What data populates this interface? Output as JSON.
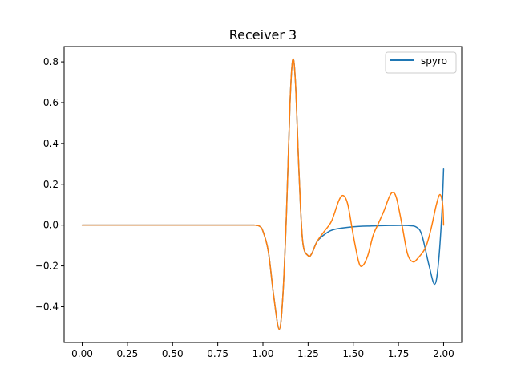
{
  "chart_data": {
    "type": "line",
    "title": "Receiver 3",
    "xlabel": "",
    "ylabel": "",
    "xlim": [
      -0.1,
      2.1
    ],
    "ylim": [
      -0.575,
      0.875
    ],
    "x_ticks": [
      0.0,
      0.25,
      0.5,
      0.75,
      1.0,
      1.25,
      1.5,
      1.75,
      2.0
    ],
    "x_tick_labels": [
      "0.00",
      "0.25",
      "0.50",
      "0.75",
      "1.00",
      "1.25",
      "1.50",
      "1.75",
      "2.00"
    ],
    "y_ticks": [
      -0.4,
      -0.2,
      0.0,
      0.2,
      0.4,
      0.6,
      0.8
    ],
    "y_tick_labels": [
      "−0.4",
      "−0.2",
      "0.0",
      "0.2",
      "0.4",
      "0.6",
      "0.8"
    ],
    "grid": false,
    "legend": {
      "position": "top-right",
      "entries": [
        "spyro"
      ]
    },
    "series": [
      {
        "name": "spyro",
        "color": "#1f77b4",
        "points": [
          [
            0.0,
            0.0
          ],
          [
            0.5,
            0.0
          ],
          [
            0.9,
            0.0
          ],
          [
            0.95,
            0.0
          ],
          [
            0.98,
            -0.005
          ],
          [
            1.0,
            -0.03
          ],
          [
            1.03,
            -0.13
          ],
          [
            1.06,
            -0.35
          ],
          [
            1.09,
            -0.51
          ],
          [
            1.11,
            -0.35
          ],
          [
            1.13,
            0.05
          ],
          [
            1.15,
            0.6
          ],
          [
            1.165,
            0.81
          ],
          [
            1.18,
            0.7
          ],
          [
            1.2,
            0.25
          ],
          [
            1.22,
            -0.08
          ],
          [
            1.25,
            -0.15
          ],
          [
            1.27,
            -0.14
          ],
          [
            1.3,
            -0.08
          ],
          [
            1.35,
            -0.04
          ],
          [
            1.4,
            -0.02
          ],
          [
            1.5,
            -0.008
          ],
          [
            1.6,
            -0.004
          ],
          [
            1.7,
            -0.002
          ],
          [
            1.8,
            -0.002
          ],
          [
            1.85,
            -0.01
          ],
          [
            1.88,
            -0.05
          ],
          [
            1.92,
            -0.2
          ],
          [
            1.95,
            -0.29
          ],
          [
            1.97,
            -0.2
          ],
          [
            1.99,
            0.05
          ],
          [
            2.0,
            0.275
          ]
        ]
      },
      {
        "name": "",
        "color": "#ff7f0e",
        "points": [
          [
            0.0,
            0.0
          ],
          [
            0.5,
            0.0
          ],
          [
            0.9,
            0.0
          ],
          [
            0.95,
            0.0
          ],
          [
            0.98,
            -0.005
          ],
          [
            1.0,
            -0.03
          ],
          [
            1.03,
            -0.13
          ],
          [
            1.06,
            -0.35
          ],
          [
            1.09,
            -0.51
          ],
          [
            1.11,
            -0.35
          ],
          [
            1.13,
            0.05
          ],
          [
            1.15,
            0.6
          ],
          [
            1.165,
            0.81
          ],
          [
            1.18,
            0.7
          ],
          [
            1.2,
            0.25
          ],
          [
            1.22,
            -0.08
          ],
          [
            1.25,
            -0.15
          ],
          [
            1.27,
            -0.14
          ],
          [
            1.3,
            -0.08
          ],
          [
            1.34,
            -0.03
          ],
          [
            1.38,
            0.02
          ],
          [
            1.42,
            0.12
          ],
          [
            1.445,
            0.145
          ],
          [
            1.47,
            0.1
          ],
          [
            1.5,
            -0.05
          ],
          [
            1.53,
            -0.18
          ],
          [
            1.55,
            -0.2
          ],
          [
            1.58,
            -0.15
          ],
          [
            1.61,
            -0.05
          ],
          [
            1.64,
            0.01
          ],
          [
            1.67,
            0.07
          ],
          [
            1.7,
            0.14
          ],
          [
            1.72,
            0.16
          ],
          [
            1.74,
            0.13
          ],
          [
            1.77,
            0.0
          ],
          [
            1.8,
            -0.14
          ],
          [
            1.83,
            -0.18
          ],
          [
            1.86,
            -0.16
          ],
          [
            1.9,
            -0.11
          ],
          [
            1.93,
            -0.02
          ],
          [
            1.96,
            0.1
          ],
          [
            1.98,
            0.15
          ],
          [
            1.995,
            0.1
          ],
          [
            2.0,
            0.0
          ]
        ]
      }
    ]
  }
}
